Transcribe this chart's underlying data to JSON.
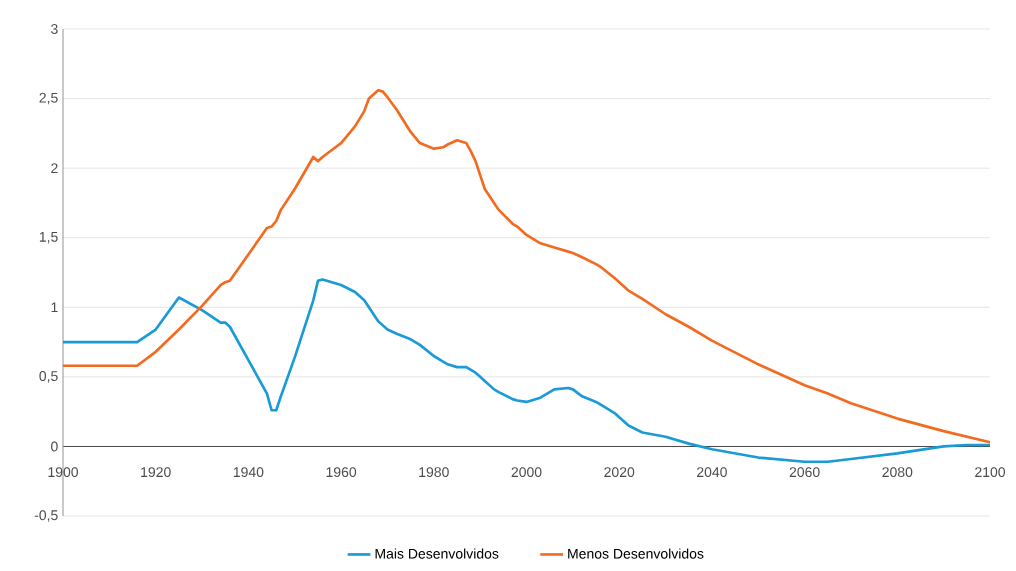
{
  "chart_data": {
    "type": "line",
    "x": [
      1900,
      1916,
      1920,
      1925,
      1930,
      1934,
      1935,
      1936,
      1940,
      1944,
      1945,
      1946,
      1947,
      1950,
      1954,
      1955,
      1956,
      1958,
      1960,
      1963,
      1965,
      1966,
      1968,
      1969,
      1970,
      1972,
      1975,
      1977,
      1980,
      1982,
      1983,
      1985,
      1987,
      1988,
      1989,
      1990,
      1991,
      1993,
      1994,
      1997,
      1998,
      2000,
      2003,
      2005,
      2006,
      2009,
      2010,
      2012,
      2015,
      2016,
      2019,
      2020,
      2022,
      2025,
      2030,
      2035,
      2040,
      2050,
      2060,
      2065,
      2070,
      2080,
      2090,
      2095,
      2100
    ],
    "series": [
      {
        "name": "Mais Desenvolvidos",
        "color": "#1a9ad6",
        "values": [
          0.75,
          0.75,
          0.84,
          1.07,
          0.98,
          0.89,
          0.89,
          0.86,
          0.62,
          0.38,
          0.26,
          0.26,
          0.36,
          0.64,
          1.05,
          1.19,
          1.2,
          1.18,
          1.16,
          1.11,
          1.05,
          1.0,
          0.9,
          0.87,
          0.84,
          0.81,
          0.77,
          0.73,
          0.65,
          0.61,
          0.59,
          0.57,
          0.57,
          0.55,
          0.53,
          0.5,
          0.47,
          0.41,
          0.39,
          0.34,
          0.33,
          0.32,
          0.35,
          0.39,
          0.41,
          0.42,
          0.41,
          0.36,
          0.32,
          0.3,
          0.24,
          0.21,
          0.15,
          0.1,
          0.07,
          0.02,
          -0.02,
          -0.08,
          -0.11,
          -0.11,
          -0.09,
          -0.05,
          0.0,
          0.01,
          0.01
        ]
      },
      {
        "name": "Menos Desenvolvidos",
        "color": "#f26b21",
        "values": [
          0.58,
          0.58,
          0.68,
          0.84,
          1.01,
          1.16,
          1.18,
          1.19,
          1.38,
          1.57,
          1.58,
          1.62,
          1.7,
          1.85,
          2.08,
          2.05,
          2.08,
          2.13,
          2.18,
          2.3,
          2.41,
          2.5,
          2.56,
          2.55,
          2.51,
          2.42,
          2.26,
          2.18,
          2.14,
          2.15,
          2.17,
          2.2,
          2.18,
          2.12,
          2.05,
          1.95,
          1.85,
          1.75,
          1.7,
          1.6,
          1.58,
          1.52,
          1.46,
          1.44,
          1.43,
          1.4,
          1.39,
          1.36,
          1.31,
          1.29,
          1.21,
          1.18,
          1.12,
          1.06,
          0.95,
          0.86,
          0.76,
          0.59,
          0.44,
          0.38,
          0.31,
          0.2,
          0.11,
          0.07,
          0.03
        ]
      }
    ],
    "xlim": [
      1900,
      2100
    ],
    "ylim": [
      -0.5,
      3
    ],
    "xticks": [
      1900,
      1920,
      1940,
      1960,
      1980,
      2000,
      2020,
      2040,
      2060,
      2080,
      2100
    ],
    "yticks": [
      {
        "value": -0.5,
        "label": "-0,5"
      },
      0,
      {
        "value": 0.5,
        "label": "0,5"
      },
      1,
      {
        "value": 1.5,
        "label": "1,5"
      },
      2,
      {
        "value": 2.5,
        "label": "2,5"
      },
      3
    ],
    "grid": "y",
    "legend": "bottom",
    "marker": "none",
    "line_style": "solid"
  }
}
